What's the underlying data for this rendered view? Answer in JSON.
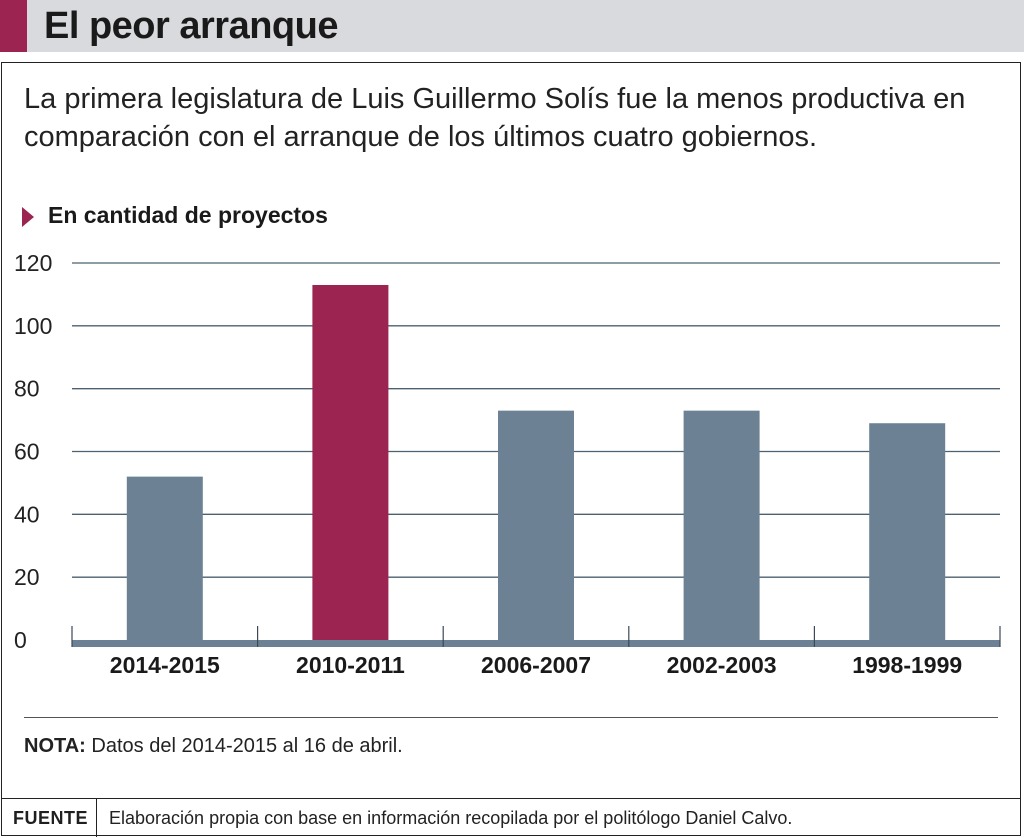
{
  "header": {
    "title": "El peor arranque"
  },
  "subtitle": "La primera legislatura de Luis Guillermo Solís fue la menos productiva en comparación con el arranque de los últimos cuatro gobiernos.",
  "unit_label": "En cantidad de proyectos",
  "note": {
    "label": "NOTA:",
    "text": "Datos del 2014-2015 al 16 de abril."
  },
  "footer": {
    "label": "FUENTE",
    "text": "Elaboración propia con base en información recopilada por el politólogo Daniel Calvo."
  },
  "colors": {
    "accent": "#9b2450",
    "bar": "#6c8193",
    "highlight": "#9b2450",
    "grid": "#4b6070",
    "header_bg": "#d8dadd"
  },
  "chart_data": {
    "type": "bar",
    "title": "El peor arranque",
    "ylabel": "En cantidad de proyectos",
    "xlabel": "",
    "categories": [
      "2014-2015",
      "2010-2011",
      "2006-2007",
      "2002-2003",
      "1998-1999"
    ],
    "values": [
      52,
      113,
      73,
      73,
      69
    ],
    "highlight_index": 1,
    "ylim": [
      0,
      120
    ],
    "yticks": [
      0,
      20,
      40,
      60,
      80,
      100,
      120
    ],
    "grid": true,
    "legend": "none"
  }
}
